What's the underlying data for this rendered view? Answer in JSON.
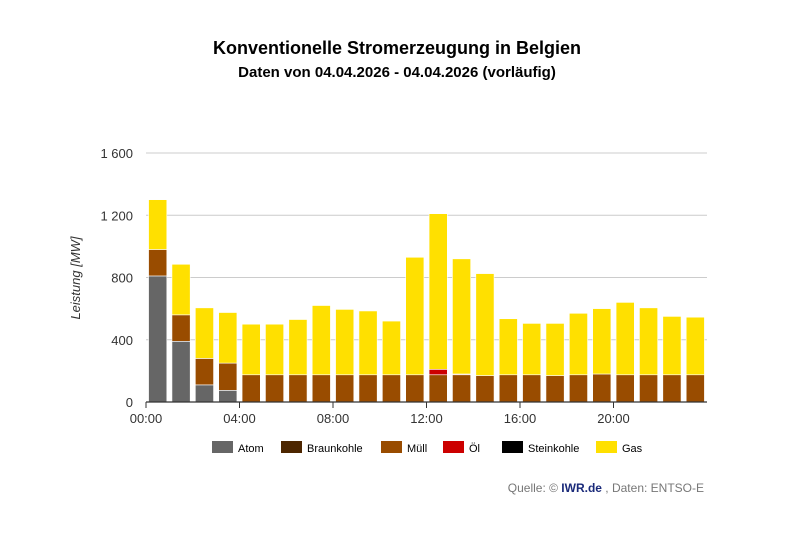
{
  "title": "Konventionelle Stromerzeugung in Belgien",
  "subtitle": "Daten von 04.04.2026 - 04.04.2026 (vorläufig)",
  "source": {
    "prefix": "Quelle: © ",
    "brand": "IWR.de",
    "suffix": " , Daten: ENTSO-E"
  },
  "colors": {
    "Atom": "#666666",
    "Braunkohle": "#4d2600",
    "Müll": "#994c00",
    "Öl": "#cc0000",
    "Steinkohle": "#000000",
    "Gas": "#ffe000",
    "grid": "#cccccc",
    "axis": "#333333"
  },
  "chart_data": {
    "type": "bar",
    "stacked": true,
    "title": "Konventionelle Stromerzeugung in Belgien",
    "subtitle": "Daten von 04.04.2026 - 04.04.2026 (vorläufig)",
    "ylabel": "Leistung [MW]",
    "xlabel": "",
    "ylim": [
      0,
      1600
    ],
    "yticks": [
      0,
      400,
      800,
      1200,
      1600
    ],
    "ytick_labels": [
      "0",
      "400",
      "800",
      "1 200",
      "1 600"
    ],
    "xtick_labels": [
      {
        "index": 0,
        "label": "00:00"
      },
      {
        "index": 4,
        "label": "04:00"
      },
      {
        "index": 8,
        "label": "08:00"
      },
      {
        "index": 12,
        "label": "12:00"
      },
      {
        "index": 16,
        "label": "16:00"
      },
      {
        "index": 20,
        "label": "20:00"
      }
    ],
    "grid": true,
    "legend_position": "bottom",
    "categories": [
      "00:00",
      "01:00",
      "02:00",
      "03:00",
      "04:00",
      "05:00",
      "06:00",
      "07:00",
      "08:00",
      "09:00",
      "10:00",
      "11:00",
      "12:00",
      "13:00",
      "14:00",
      "15:00",
      "16:00",
      "17:00",
      "18:00",
      "19:00",
      "20:00",
      "21:00",
      "22:00",
      "23:00"
    ],
    "series": [
      {
        "name": "Atom",
        "values": [
          810,
          390,
          110,
          75,
          0,
          0,
          0,
          0,
          0,
          0,
          0,
          0,
          0,
          0,
          0,
          0,
          0,
          0,
          0,
          0,
          0,
          0,
          0,
          0
        ]
      },
      {
        "name": "Braunkohle",
        "values": [
          0,
          0,
          0,
          0,
          0,
          0,
          0,
          0,
          0,
          0,
          0,
          0,
          0,
          0,
          0,
          0,
          0,
          0,
          0,
          0,
          0,
          0,
          0,
          0
        ]
      },
      {
        "name": "Müll",
        "values": [
          170,
          170,
          170,
          175,
          175,
          175,
          175,
          175,
          175,
          175,
          175,
          175,
          175,
          175,
          170,
          175,
          175,
          170,
          175,
          180,
          175,
          175,
          175,
          175
        ]
      },
      {
        "name": "Öl",
        "values": [
          0,
          0,
          0,
          0,
          0,
          0,
          0,
          0,
          0,
          0,
          0,
          0,
          35,
          5,
          0,
          0,
          0,
          0,
          0,
          0,
          0,
          0,
          0,
          0
        ]
      },
      {
        "name": "Steinkohle",
        "values": [
          0,
          0,
          0,
          0,
          0,
          0,
          0,
          0,
          0,
          0,
          0,
          0,
          0,
          0,
          0,
          0,
          0,
          0,
          0,
          0,
          0,
          0,
          0,
          0
        ]
      },
      {
        "name": "Gas",
        "values": [
          320,
          325,
          325,
          325,
          325,
          325,
          355,
          445,
          420,
          410,
          345,
          755,
          1000,
          740,
          655,
          360,
          330,
          335,
          395,
          420,
          465,
          430,
          375,
          370
        ]
      }
    ]
  }
}
